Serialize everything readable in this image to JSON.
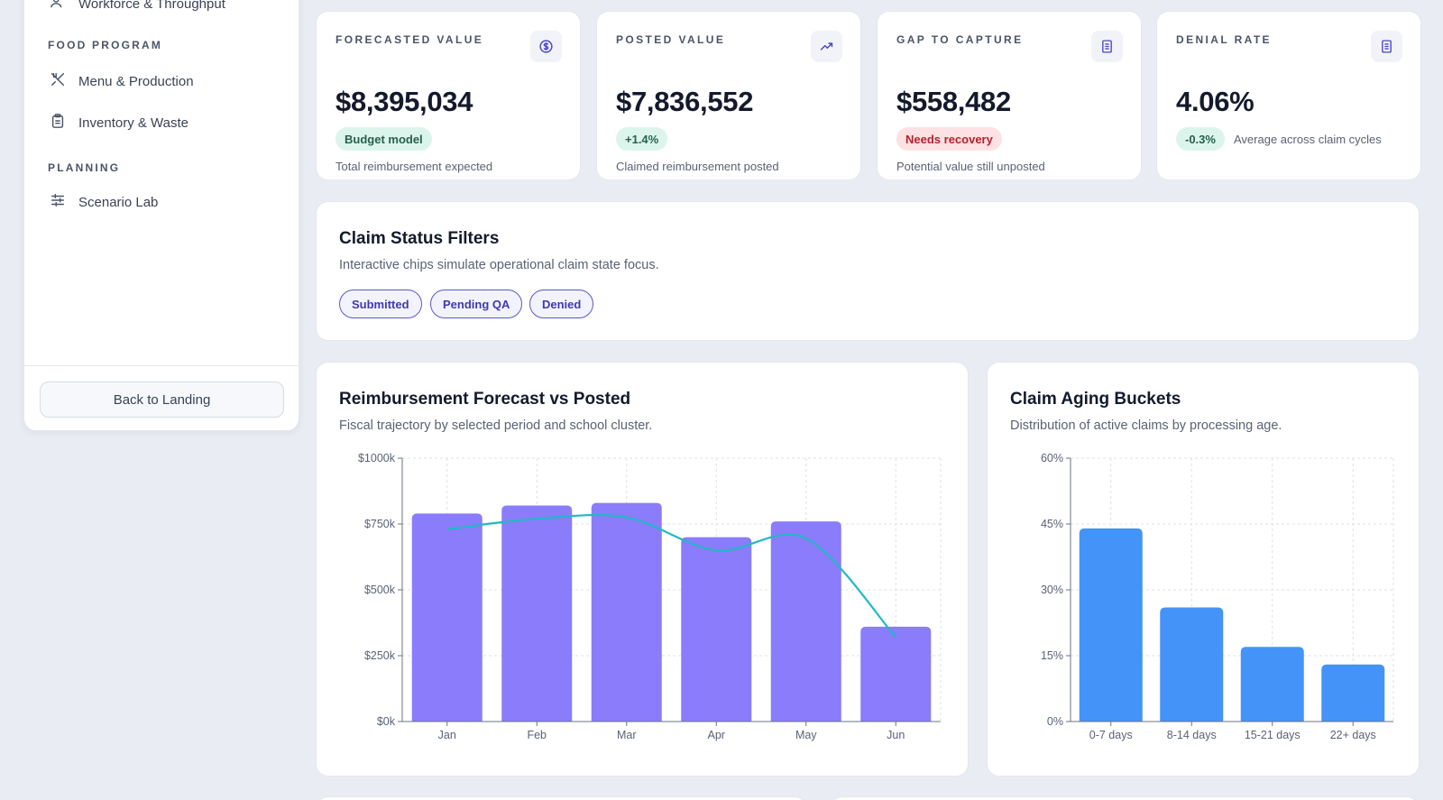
{
  "sidebar": {
    "top_item_label": "Workforce & Throughput",
    "sections": [
      {
        "title": "FOOD PROGRAM"
      },
      {
        "title": "PLANNING"
      }
    ],
    "items": [
      {
        "label": "Menu & Production",
        "icon": "utensils-icon"
      },
      {
        "label": "Inventory & Waste",
        "icon": "clipboard-icon"
      },
      {
        "label": "Scenario Lab",
        "icon": "sliders-icon"
      }
    ],
    "back_button": "Back to Landing"
  },
  "kpis": [
    {
      "label": "FORECASTED VALUE",
      "value": "$8,395,034",
      "badge": "Budget model",
      "badge_tone": "green",
      "sub": "Total reimbursement expected",
      "icon": "dollar-circle-icon"
    },
    {
      "label": "POSTED VALUE",
      "value": "$7,836,552",
      "badge": "+1.4%",
      "badge_tone": "green",
      "sub": "Claimed reimbursement posted",
      "icon": "trending-up-icon"
    },
    {
      "label": "GAP TO CAPTURE",
      "value": "$558,482",
      "badge": "Needs recovery",
      "badge_tone": "red",
      "sub": "Potential value still unposted",
      "icon": "document-icon"
    },
    {
      "label": "DENIAL RATE",
      "value": "4.06%",
      "badge": "-0.3%",
      "badge_tone": "green",
      "sub": "Average across claim cycles",
      "icon": "document-icon"
    }
  ],
  "filters": {
    "title": "Claim Status Filters",
    "subtitle": "Interactive chips simulate operational claim state focus.",
    "chips": [
      "Submitted",
      "Pending QA",
      "Denied"
    ]
  },
  "colors": {
    "bar_primary": "#8a7cfb",
    "line_posted": "#22b8c4",
    "bar_aging": "#4493f8",
    "accent": "#5b57c9"
  },
  "chart_data": [
    {
      "type": "bar",
      "title": "Reimbursement Forecast vs Posted",
      "subtitle": "Fiscal trajectory by selected period and school cluster.",
      "categories": [
        "Jan",
        "Feb",
        "Mar",
        "Apr",
        "May",
        "Jun"
      ],
      "series": [
        {
          "type": "bar",
          "values": [
            790,
            820,
            830,
            700,
            760,
            360
          ]
        },
        {
          "type": "line",
          "values": [
            730,
            770,
            775,
            650,
            695,
            320
          ]
        }
      ],
      "y_ticks": [
        "$0k",
        "$250k",
        "$500k",
        "$750k",
        "$1000k"
      ],
      "ylim": [
        0,
        1000
      ],
      "grid": true
    },
    {
      "type": "bar",
      "title": "Claim Aging Buckets",
      "subtitle": "Distribution of active claims by processing age.",
      "categories": [
        "0-7 days",
        "8-14 days",
        "15-21 days",
        "22+ days"
      ],
      "values": [
        44,
        26,
        17,
        13
      ],
      "y_ticks": [
        "0%",
        "15%",
        "30%",
        "45%",
        "60%"
      ],
      "ylim": [
        0,
        60
      ],
      "grid": true
    }
  ]
}
